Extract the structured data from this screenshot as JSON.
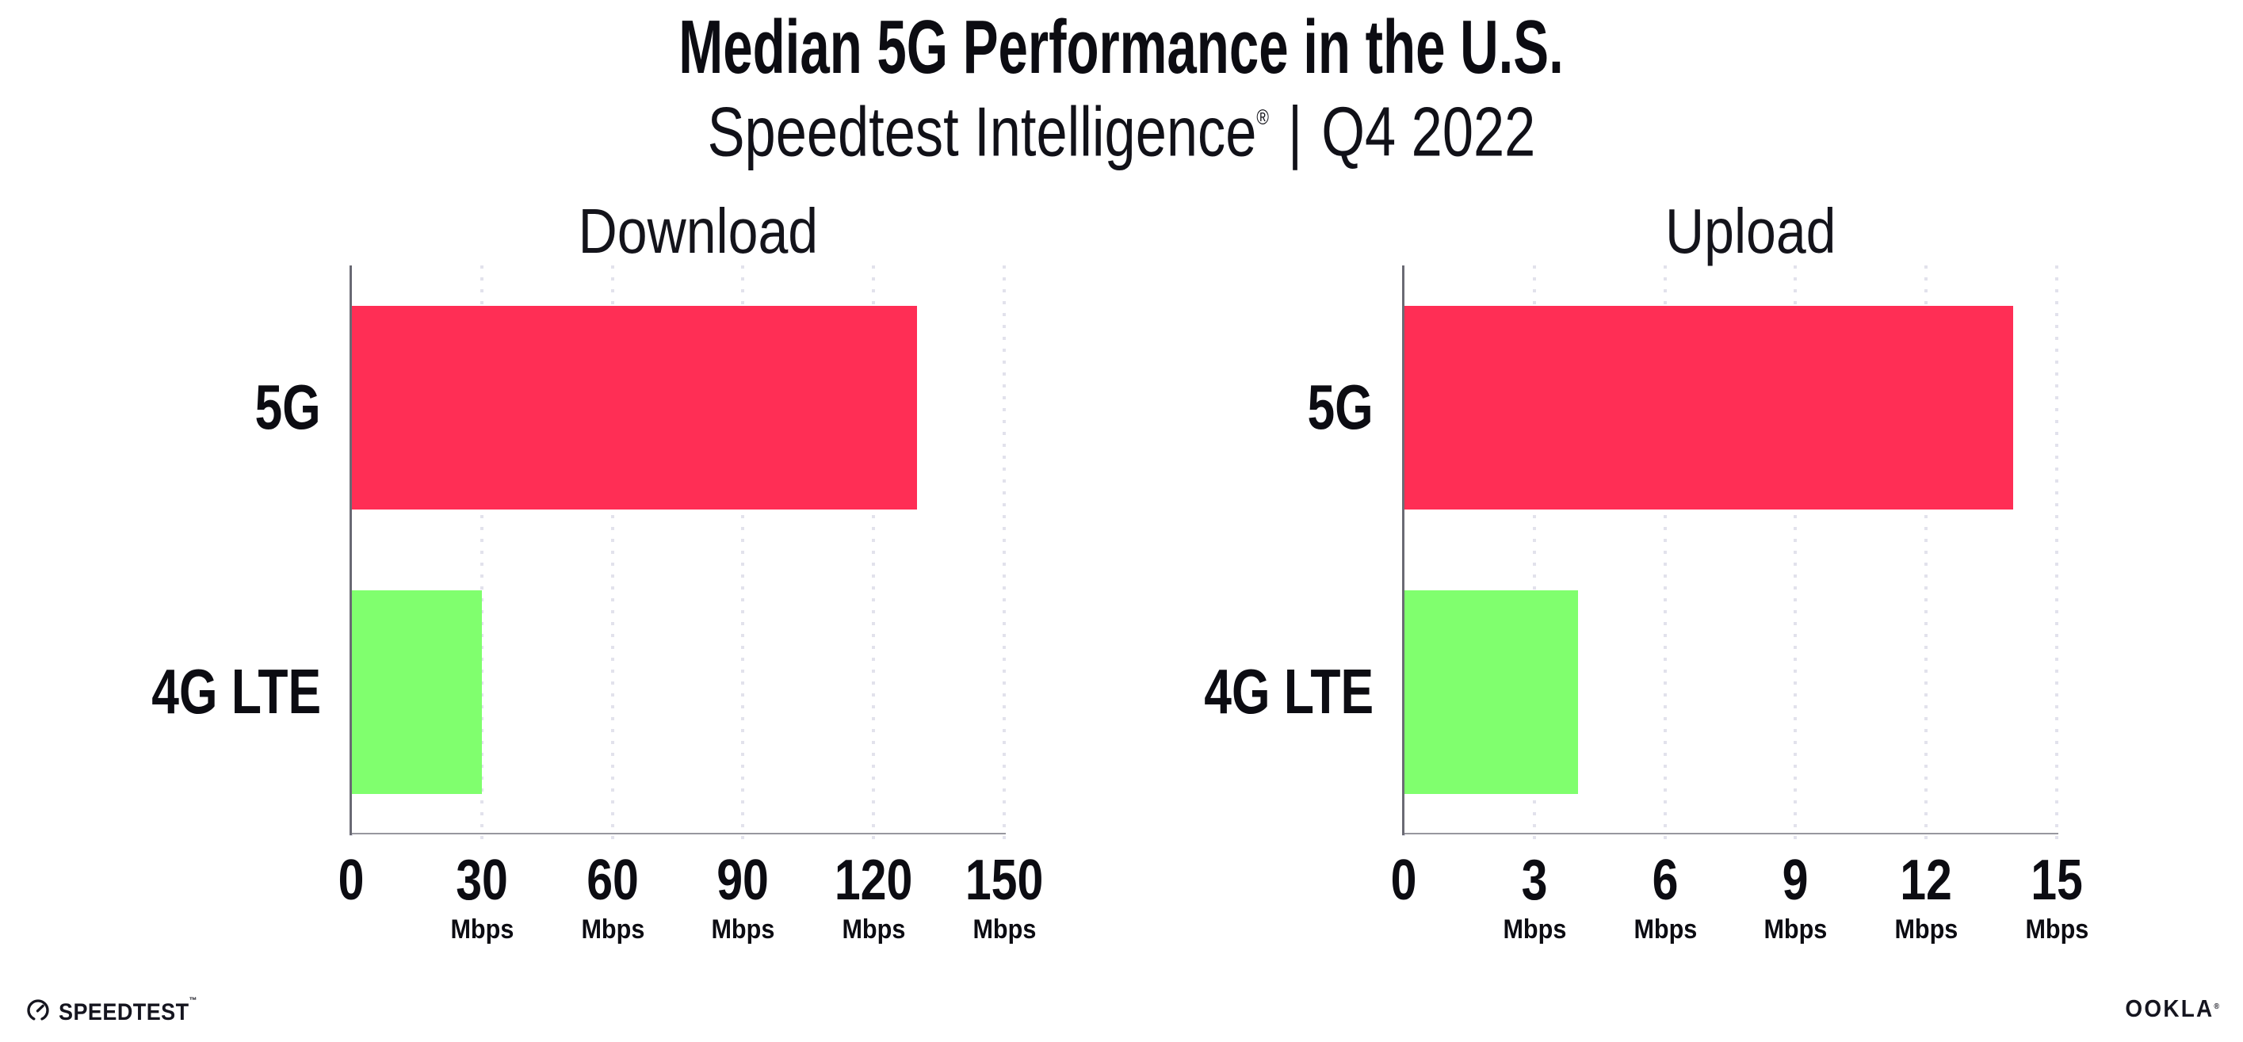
{
  "header": {
    "title": "Median 5G Performance in the U.S.",
    "subtitle_brand": "Speedtest Intelligence",
    "subtitle_reg": "®",
    "subtitle_sep": "|",
    "subtitle_period": "Q4 2022"
  },
  "chart_data": [
    {
      "type": "bar",
      "orientation": "horizontal",
      "title": "Download",
      "categories": [
        "5G",
        "4G LTE"
      ],
      "values": [
        130,
        30
      ],
      "unit": "Mbps",
      "xlim": [
        0,
        150
      ],
      "xticks": [
        0,
        30,
        60,
        90,
        120,
        150
      ],
      "grid": "dotted-vertical-gridlines",
      "legend": "none",
      "series_colors": [
        "#FF2E55",
        "#80FF6E"
      ]
    },
    {
      "type": "bar",
      "orientation": "horizontal",
      "title": "Upload",
      "categories": [
        "5G",
        "4G LTE"
      ],
      "values": [
        14,
        4
      ],
      "unit": "Mbps",
      "xlim": [
        0,
        15
      ],
      "xticks": [
        0,
        3,
        6,
        9,
        12,
        15
      ],
      "grid": "dotted-vertical-gridlines",
      "legend": "none",
      "series_colors": [
        "#FF2E55",
        "#80FF6E"
      ]
    }
  ],
  "footer": {
    "speedtest_label": "SPEEDTEST",
    "speedtest_tm": "™",
    "ookla_label": "OOKLA",
    "ookla_reg": "®"
  },
  "colors": {
    "bar_5g": "#FF2E55",
    "bar_4g_lte": "#80FF6E",
    "y_axis_line": "#6A6A74",
    "x_axis_line": "#97979F",
    "gridline_dots": "#E2E2EC",
    "text": "#0C0C12",
    "background": "#FFFFFF"
  }
}
